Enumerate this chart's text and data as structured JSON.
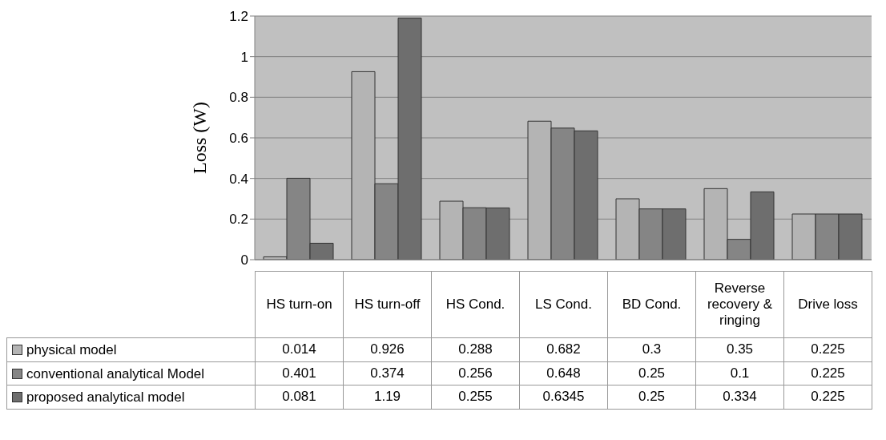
{
  "chart_data": {
    "type": "bar",
    "ylabel": "Loss (W)",
    "categories": [
      "HS turn-on",
      "HS turn-off",
      "HS Cond.",
      "LS Cond.",
      "BD Cond.",
      "Reverse recovery & ringing",
      "Drive loss"
    ],
    "series": [
      {
        "name": "physical model",
        "color": "#b4b4b4",
        "values": [
          0.014,
          0.926,
          0.288,
          0.682,
          0.3,
          0.35,
          0.225
        ]
      },
      {
        "name": "conventional analytical Model",
        "color": "#858585",
        "values": [
          0.401,
          0.374,
          0.256,
          0.648,
          0.25,
          0.1,
          0.225
        ]
      },
      {
        "name": "proposed analytical model",
        "color": "#6e6e6e",
        "values": [
          0.081,
          1.19,
          0.255,
          0.6345,
          0.25,
          0.334,
          0.225
        ]
      }
    ],
    "ylim": [
      0,
      1.2
    ],
    "yticks": [
      0,
      0.2,
      0.4,
      0.6,
      0.8,
      1,
      1.2
    ],
    "grid": "y",
    "legend": "bottom left",
    "data_labels": true
  }
}
